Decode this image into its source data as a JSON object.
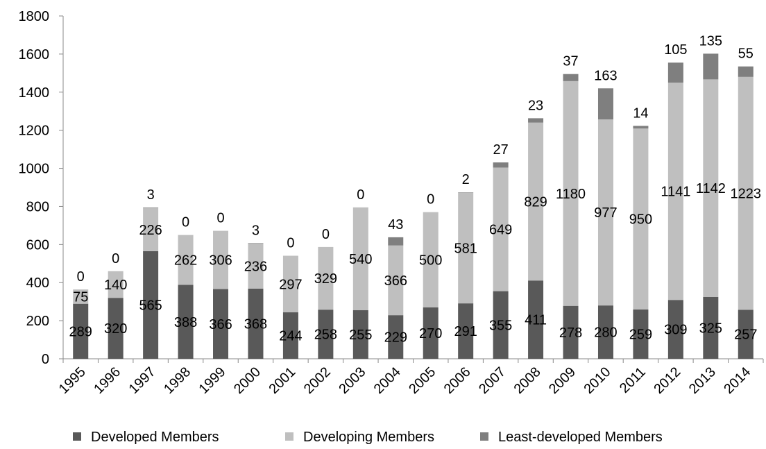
{
  "chart_data": {
    "type": "bar",
    "stacked": true,
    "categories": [
      "1995",
      "1996",
      "1997",
      "1998",
      "1999",
      "2000",
      "2001",
      "2002",
      "2003",
      "2004",
      "2005",
      "2006",
      "2007",
      "2008",
      "2009",
      "2010",
      "2011",
      "2012",
      "2013",
      "2014"
    ],
    "series": [
      {
        "name": "Developed Members",
        "color": "#595959",
        "values": [
          289,
          320,
          565,
          388,
          366,
          368,
          244,
          258,
          255,
          229,
          270,
          291,
          355,
          411,
          278,
          280,
          259,
          309,
          325,
          257
        ]
      },
      {
        "name": "Developing Members",
        "color": "#bfbfbf",
        "values": [
          75,
          140,
          226,
          262,
          306,
          236,
          297,
          329,
          540,
          366,
          500,
          581,
          649,
          829,
          1180,
          977,
          950,
          1141,
          1142,
          1223
        ]
      },
      {
        "name": "Least-developed Members",
        "color": "#7f7f7f",
        "values": [
          0,
          0,
          3,
          0,
          0,
          3,
          0,
          0,
          0,
          43,
          0,
          2,
          27,
          23,
          37,
          163,
          14,
          105,
          135,
          55
        ]
      }
    ],
    "ylim": [
      0,
      1800
    ],
    "yticks": [
      "0",
      "200",
      "400",
      "600",
      "800",
      "1000",
      "1200",
      "1400",
      "1600",
      "1800"
    ],
    "title": "",
    "xlabel": "",
    "ylabel": "",
    "grid": false,
    "legend_position": "bottom"
  }
}
